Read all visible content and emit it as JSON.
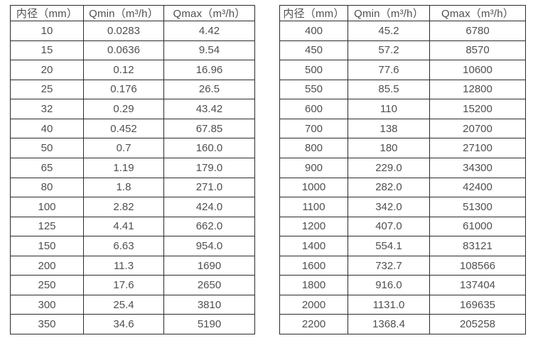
{
  "page": {
    "background": "#ffffff",
    "border_color": "#2b2b2b",
    "text_color": "#4f4f4f"
  },
  "tables": [
    {
      "name": "flow-range-table-dn10-350",
      "headers": [
        "内径（mm）",
        "Qmin（m³/h）",
        "Qmax（m³/h）"
      ],
      "rows": [
        [
          "10",
          "0.0283",
          "4.42"
        ],
        [
          "15",
          "0.0636",
          "9.54"
        ],
        [
          "20",
          "0.12",
          "16.96"
        ],
        [
          "25",
          "0.176",
          "26.5"
        ],
        [
          "32",
          "0.29",
          "43.42"
        ],
        [
          "40",
          "0.452",
          "67.85"
        ],
        [
          "50",
          "0.7",
          "160.0"
        ],
        [
          "65",
          "1.19",
          "179.0"
        ],
        [
          "80",
          "1.8",
          "271.0"
        ],
        [
          "100",
          "2.82",
          "424.0"
        ],
        [
          "125",
          "4.41",
          "662.0"
        ],
        [
          "150",
          "6.63",
          "954.0"
        ],
        [
          "200",
          "11.3",
          "1690"
        ],
        [
          "250",
          "17.6",
          "2650"
        ],
        [
          "300",
          "25.4",
          "3810"
        ],
        [
          "350",
          "34.6",
          "5190"
        ]
      ]
    },
    {
      "name": "flow-range-table-dn400-2200",
      "headers": [
        "内径（mm）",
        "Qmin（m³/h）",
        "Qmax（m³/h）"
      ],
      "rows": [
        [
          "400",
          "45.2",
          "6780"
        ],
        [
          "450",
          "57.2",
          "8570"
        ],
        [
          "500",
          "77.6",
          "10600"
        ],
        [
          "550",
          "85.5",
          "12800"
        ],
        [
          "600",
          "110",
          "15200"
        ],
        [
          "700",
          "138",
          "20700"
        ],
        [
          "800",
          "180",
          "27100"
        ],
        [
          "900",
          "229.0",
          "34300"
        ],
        [
          "1000",
          "282.0",
          "42400"
        ],
        [
          "1100",
          "342.0",
          "51300"
        ],
        [
          "1200",
          "407.0",
          "61000"
        ],
        [
          "1400",
          "554.1",
          "83121"
        ],
        [
          "1600",
          "732.7",
          "108566"
        ],
        [
          "1800",
          "916.0",
          "137404"
        ],
        [
          "2000",
          "1131.0",
          "169635"
        ],
        [
          "2200",
          "1368.4",
          "205258"
        ]
      ]
    }
  ]
}
